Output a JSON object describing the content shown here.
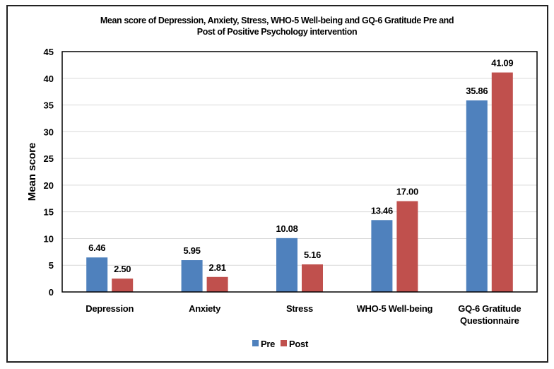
{
  "chart_data": {
    "type": "bar",
    "title": [
      "Mean score of Depression, Anxiety, Stress, WHO-5 Well-being and GQ-6 Gratitude Pre and",
      "Post of Positive Psychology intervention"
    ],
    "xlabel": "",
    "ylabel": "Mean score",
    "ylim": [
      0,
      45
    ],
    "yticks": [
      0,
      5,
      10,
      15,
      20,
      25,
      30,
      35,
      40,
      45
    ],
    "grid": true,
    "legend_position": "bottom",
    "categories": [
      [
        "Depression"
      ],
      [
        "Anxiety"
      ],
      [
        "Stress"
      ],
      [
        "WHO-5 Well-being"
      ],
      [
        "GQ-6 Gratitude",
        "Questionnaire"
      ]
    ],
    "series": [
      {
        "name": "Pre",
        "color": "#4f81bd",
        "values": [
          6.46,
          5.95,
          10.08,
          13.46,
          35.86
        ],
        "labels": [
          "6.46",
          "5.95",
          "10.08",
          "13.46",
          "35.86"
        ]
      },
      {
        "name": "Post",
        "color": "#c0504d",
        "values": [
          2.5,
          2.81,
          5.16,
          17.0,
          41.09
        ],
        "labels": [
          "2.50",
          "2.81",
          "5.16",
          "17.00",
          "41.09"
        ]
      }
    ]
  }
}
